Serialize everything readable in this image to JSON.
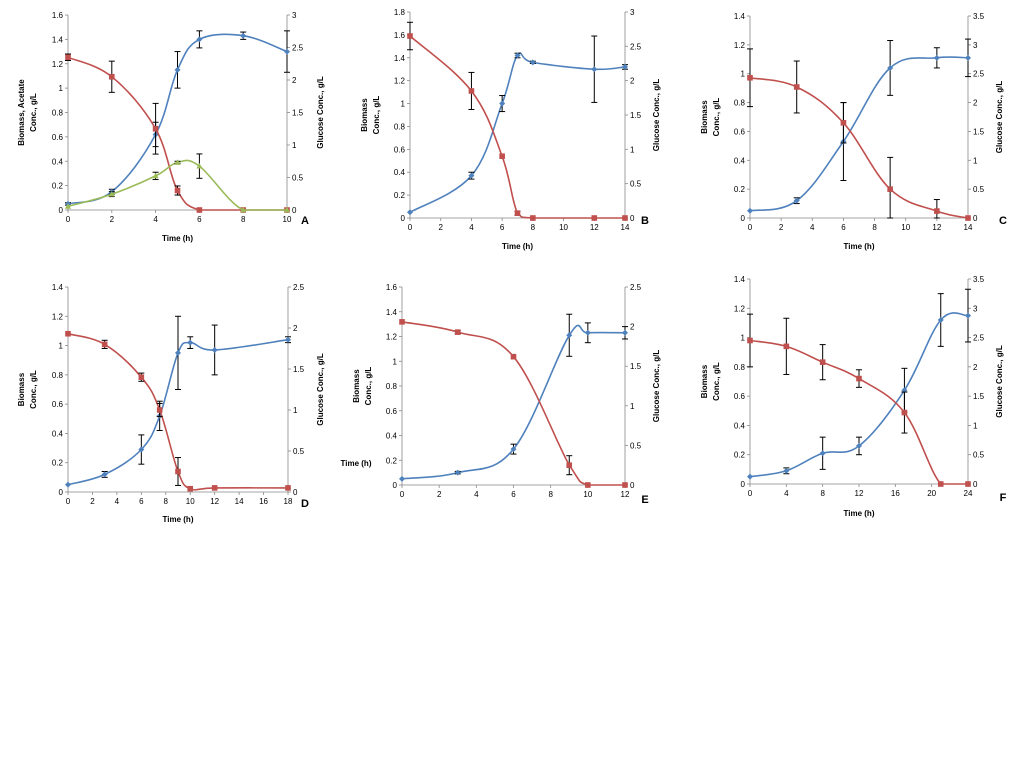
{
  "colors": {
    "biomass": "#4f81bd",
    "glucose": "#c0504d",
    "acetate": "#9bbb59",
    "error_bar": "#000000"
  },
  "chart_data": [
    {
      "panel": "A",
      "type": "line",
      "xlabel": "Time (h)",
      "ylabel": [
        "Biomass, Acetate",
        "Conc., g/L"
      ],
      "y2label": "Glucose Conc., g/L",
      "xlim": [
        0,
        10
      ],
      "xticks": [
        0,
        2,
        4,
        6,
        8,
        10
      ],
      "ylim": [
        0,
        1.6
      ],
      "yticks": [
        0,
        0.2,
        0.4,
        0.6,
        0.8,
        1,
        1.2,
        1.4,
        1.6
      ],
      "y2lim": [
        0,
        3
      ],
      "y2ticks": [
        0,
        0.5,
        1,
        1.5,
        2,
        2.5,
        3
      ],
      "series": [
        {
          "key": "biomass",
          "axis": "left",
          "x": [
            0,
            2,
            4,
            5,
            6,
            8,
            10
          ],
          "y": [
            0.05,
            0.15,
            0.62,
            1.15,
            1.4,
            1.43,
            1.3
          ],
          "err": [
            0.01,
            0.02,
            0.1,
            0.15,
            0.07,
            0.03,
            0.17
          ]
        },
        {
          "key": "glucose",
          "axis": "right",
          "x": [
            0,
            2,
            4,
            5,
            6,
            8,
            10
          ],
          "y": [
            2.35,
            2.05,
            1.25,
            0.3,
            0.0,
            0.0,
            0.0
          ],
          "err": [
            0.05,
            0.24,
            0.39,
            0.07,
            0,
            0,
            0
          ]
        },
        {
          "key": "acetate",
          "axis": "left",
          "x": [
            0,
            2,
            4,
            5,
            6,
            8,
            10
          ],
          "y": [
            0.03,
            0.13,
            0.28,
            0.39,
            0.36,
            0.0,
            0.0
          ],
          "err": [
            0,
            0.02,
            0.03,
            0.01,
            0.1,
            0,
            0
          ]
        }
      ]
    },
    {
      "panel": "B",
      "type": "line",
      "xlabel": "Time (h)",
      "ylabel": [
        "Biomass",
        "Conc., g/L"
      ],
      "y2label": "Glucose Conc., g/L",
      "xlim": [
        0,
        14
      ],
      "xticks": [
        0,
        2,
        4,
        6,
        8,
        10,
        12,
        14
      ],
      "ylim": [
        0,
        1.8
      ],
      "yticks": [
        0,
        0.2,
        0.4,
        0.6,
        0.8,
        1,
        1.2,
        1.4,
        1.6,
        1.8
      ],
      "y2lim": [
        0,
        3
      ],
      "y2ticks": [
        0,
        0.5,
        1,
        1.5,
        2,
        2.5,
        3
      ],
      "series": [
        {
          "key": "biomass",
          "axis": "left",
          "x": [
            0,
            4,
            6,
            7,
            8,
            12,
            14
          ],
          "y": [
            0.05,
            0.37,
            1.0,
            1.42,
            1.36,
            1.3,
            1.32
          ],
          "err": [
            0,
            0.03,
            0.07,
            0.02,
            0.01,
            0.29,
            0.02
          ]
        },
        {
          "key": "glucose",
          "axis": "right",
          "x": [
            0,
            4,
            6,
            7,
            8,
            12,
            14
          ],
          "y": [
            2.65,
            1.85,
            0.9,
            0.07,
            0.0,
            0.0,
            0.0
          ],
          "err": [
            0.2,
            0.27,
            0,
            0.03,
            0,
            0,
            0
          ]
        }
      ]
    },
    {
      "panel": "C",
      "type": "line",
      "xlabel": "Time (h)",
      "ylabel": [
        "Biomass",
        "Conc., g/L"
      ],
      "y2label": "Glucose Conc., g/L",
      "xlim": [
        0,
        14
      ],
      "xticks": [
        0,
        2,
        4,
        6,
        8,
        10,
        12,
        14
      ],
      "ylim": [
        0,
        1.4
      ],
      "yticks": [
        0,
        0.2,
        0.4,
        0.6,
        0.8,
        1,
        1.2,
        1.4
      ],
      "y2lim": [
        0,
        3.5
      ],
      "y2ticks": [
        0,
        0.5,
        1,
        1.5,
        2,
        2.5,
        3,
        3.5
      ],
      "series": [
        {
          "key": "biomass",
          "axis": "left",
          "x": [
            0,
            3,
            6,
            9,
            12,
            14
          ],
          "y": [
            0.05,
            0.12,
            0.53,
            1.04,
            1.11,
            1.11
          ],
          "err": [
            0,
            0.02,
            0.27,
            0.19,
            0.07,
            0.13
          ]
        },
        {
          "key": "glucose",
          "axis": "right",
          "x": [
            0,
            3,
            6,
            9,
            12,
            14
          ],
          "y": [
            2.43,
            2.27,
            1.65,
            0.5,
            0.12,
            0.0
          ],
          "err": [
            0.5,
            0.45,
            0.35,
            0.55,
            0.2,
            0
          ]
        }
      ]
    },
    {
      "panel": "D",
      "type": "line",
      "xlabel": "Time (h)",
      "ylabel": [
        "Biomass",
        "Conc., g/L"
      ],
      "y2label": "Glucose Conc., g/L",
      "xlim": [
        0,
        18
      ],
      "xticks": [
        0,
        2,
        4,
        6,
        8,
        10,
        12,
        14,
        16,
        18
      ],
      "ylim": [
        0,
        1.4
      ],
      "yticks": [
        0,
        0.2,
        0.4,
        0.6,
        0.8,
        1,
        1.2,
        1.4
      ],
      "y2lim": [
        0,
        2.5
      ],
      "y2ticks": [
        0,
        0.5,
        1,
        1.5,
        2,
        2.5
      ],
      "series": [
        {
          "key": "biomass",
          "axis": "left",
          "x": [
            0,
            3,
            6,
            7.5,
            9,
            10,
            12,
            18
          ],
          "y": [
            0.05,
            0.12,
            0.29,
            0.52,
            0.95,
            1.02,
            0.97,
            1.04
          ],
          "err": [
            0,
            0.02,
            0.1,
            0.1,
            0.25,
            0.04,
            0.17,
            0.02
          ]
        },
        {
          "key": "glucose",
          "axis": "right",
          "x": [
            0,
            3,
            6,
            7.5,
            9,
            10,
            12,
            18
          ],
          "y": [
            1.93,
            1.8,
            1.4,
            1.0,
            0.25,
            0.04,
            0.05,
            0.05
          ],
          "err": [
            0,
            0.05,
            0.05,
            0.08,
            0.17,
            0,
            0,
            0
          ]
        }
      ]
    },
    {
      "panel": "E",
      "type": "line",
      "xlabel": "Time (h)",
      "ylabel": [
        "Biomass",
        "Conc., g/L"
      ],
      "y2label": "Glucose Conc., g/L",
      "xlim": [
        0,
        12
      ],
      "xticks": [
        0,
        2,
        4,
        6,
        8,
        10,
        12
      ],
      "ylim": [
        0,
        1.6
      ],
      "yticks": [
        0,
        0.2,
        0.4,
        0.6,
        0.8,
        1,
        1.2,
        1.4,
        1.6
      ],
      "y2lim": [
        0,
        2.5
      ],
      "y2ticks": [
        0,
        0.5,
        1,
        1.5,
        2,
        2.5
      ],
      "series": [
        {
          "key": "biomass",
          "axis": "left",
          "x": [
            0,
            3,
            6,
            9,
            10,
            12
          ],
          "y": [
            0.05,
            0.1,
            0.29,
            1.21,
            1.23,
            1.23
          ],
          "err": [
            0,
            0.01,
            0.04,
            0.17,
            0.08,
            0.05
          ]
        },
        {
          "key": "glucose",
          "axis": "right",
          "x": [
            0,
            3,
            6,
            9,
            10,
            12
          ],
          "y": [
            2.06,
            1.93,
            1.62,
            0.25,
            0.0,
            0.0
          ],
          "err": [
            0,
            0.02,
            0,
            0.12,
            0,
            0
          ]
        }
      ]
    },
    {
      "panel": "F",
      "type": "line",
      "xlabel": "Time (h)",
      "ylabel": [
        "Biomass",
        "Conc., g/L"
      ],
      "y2label": "Glucose Conc., g/L",
      "xlim": [
        0,
        24
      ],
      "xticks": [
        0,
        4,
        8,
        12,
        16,
        20,
        24
      ],
      "ylim": [
        0,
        1.4
      ],
      "yticks": [
        0,
        0.2,
        0.4,
        0.6,
        0.8,
        1,
        1.2,
        1.4
      ],
      "y2lim": [
        0,
        3.5
      ],
      "y2ticks": [
        0,
        0.5,
        1,
        1.5,
        2,
        2.5,
        3,
        3.5
      ],
      "series": [
        {
          "key": "biomass",
          "axis": "left",
          "x": [
            0,
            4,
            8,
            12,
            17,
            21,
            24
          ],
          "y": [
            0.05,
            0.09,
            0.21,
            0.26,
            0.64,
            1.12,
            1.15
          ],
          "err": [
            0,
            0.02,
            0.11,
            0.06,
            0.15,
            0.18,
            0.18
          ]
        },
        {
          "key": "glucose",
          "axis": "right",
          "x": [
            0,
            4,
            8,
            12,
            17,
            21,
            24
          ],
          "y": [
            2.45,
            2.35,
            2.08,
            1.8,
            1.22,
            0.0,
            0.0
          ],
          "err": [
            0.45,
            0.48,
            0.3,
            0.15,
            0.35,
            0,
            0
          ]
        }
      ]
    }
  ]
}
